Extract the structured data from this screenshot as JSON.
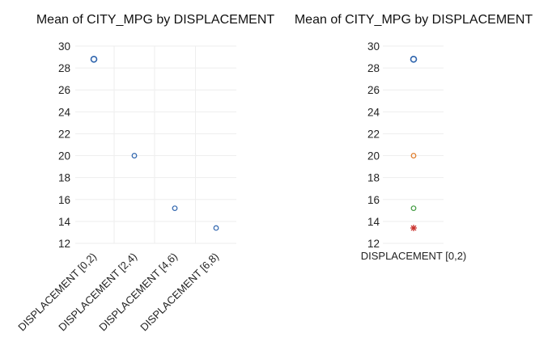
{
  "chart_data": [
    {
      "type": "scatter",
      "title": "Mean of CITY_MPG by DISPLACEMENT",
      "xlabel": "",
      "ylabel": "",
      "ylim": [
        12,
        30
      ],
      "yticks": [
        "30",
        "28",
        "26",
        "24",
        "22",
        "20",
        "18",
        "16",
        "14",
        "12"
      ],
      "grid": true,
      "categories": [
        "DISPLACEMENT [0,2)",
        "DISPLACEMENT [2,4)",
        "DISPLACEMENT [4,6)",
        "DISPLACEMENT [6,8)"
      ],
      "series": [
        {
          "values": [
            28.8,
            20.0,
            15.2,
            13.4
          ],
          "color": "#2e64ad",
          "marker": "circle"
        }
      ]
    },
    {
      "type": "scatter",
      "title": "Mean of CITY_MPG by DISPLACEMENT",
      "xlabel": "",
      "ylabel": "",
      "ylim": [
        12,
        30
      ],
      "yticks": [
        "30",
        "28",
        "26",
        "24",
        "22",
        "20",
        "18",
        "16",
        "14",
        "12"
      ],
      "grid": true,
      "categories": [
        "DISPLACEMENT [0,2)"
      ],
      "series": [
        {
          "values": [
            28.8
          ],
          "color": "#2e64ad",
          "marker": "circle"
        },
        {
          "values": [
            20.0
          ],
          "color": "#e07b28",
          "marker": "circle"
        },
        {
          "values": [
            15.2
          ],
          "color": "#3f9a3f",
          "marker": "circle"
        },
        {
          "values": [
            13.4
          ],
          "color": "#c9302c",
          "marker": "star"
        }
      ]
    }
  ]
}
